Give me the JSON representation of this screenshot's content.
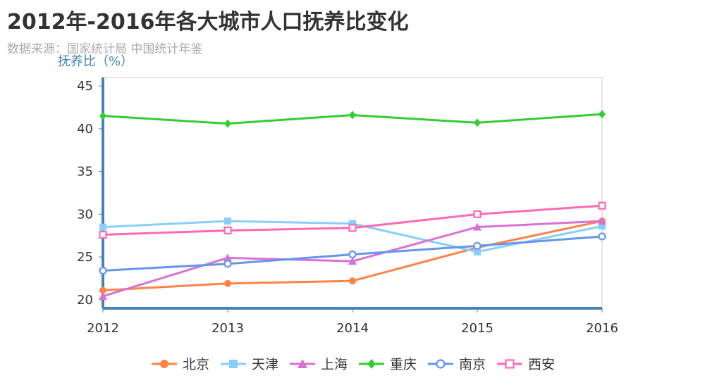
{
  "title": "2012年-2016年各大城市人口抚养比变化",
  "subtitle": "数据来源：国家统计局 中国统计年鉴",
  "chart_data": {
    "type": "line",
    "title": "2012年-2016年各大城市人口抚养比变化",
    "subtitle": "数据来源：国家统计局 中国统计年鉴",
    "xlabel": "",
    "ylabel": "抚养比（%）",
    "categories": [
      "2012",
      "2013",
      "2014",
      "2015",
      "2016"
    ],
    "ylim": [
      19,
      46
    ],
    "yticks": [
      20,
      25,
      30,
      35,
      40,
      45
    ],
    "grid": false,
    "legend_position": "bottom",
    "series": [
      {
        "name": "北京",
        "color": "#ff8247",
        "marker": "circle",
        "values": [
          21.1,
          21.9,
          22.2,
          26.1,
          29.2
        ]
      },
      {
        "name": "天津",
        "color": "#87cefa",
        "marker": "square",
        "values": [
          28.5,
          29.2,
          28.9,
          25.6,
          28.6
        ]
      },
      {
        "name": "上海",
        "color": "#da70d6",
        "marker": "triangle",
        "values": [
          20.4,
          24.9,
          24.5,
          28.5,
          29.2
        ]
      },
      {
        "name": "重庆",
        "color": "#32cd32",
        "marker": "diamond",
        "values": [
          41.5,
          40.6,
          41.6,
          40.7,
          41.7
        ]
      },
      {
        "name": "南京",
        "color": "#6495ed",
        "marker": "emptyCircle",
        "values": [
          23.4,
          24.2,
          25.3,
          26.3,
          27.4
        ]
      },
      {
        "name": "西安",
        "color": "#ff69b4",
        "marker": "emptySquare",
        "values": [
          27.6,
          28.1,
          28.4,
          30.0,
          31.0
        ]
      }
    ]
  }
}
